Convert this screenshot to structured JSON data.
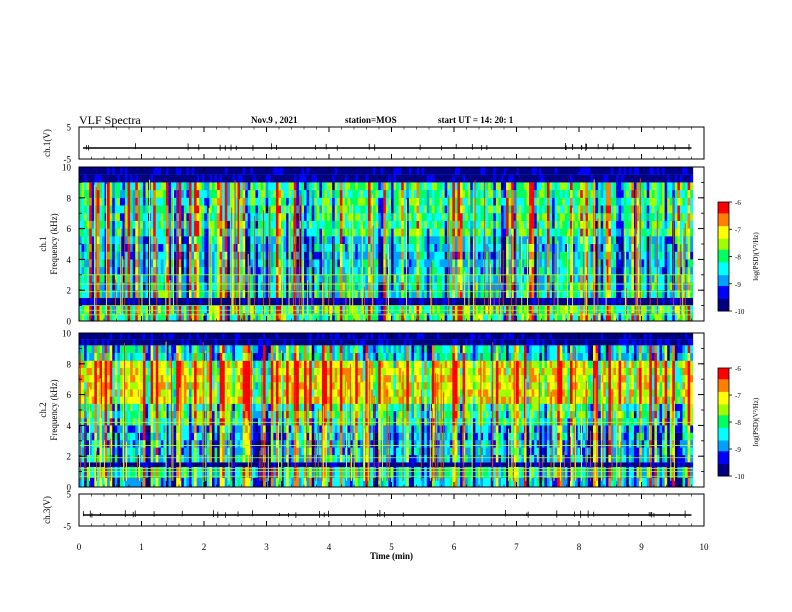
{
  "header": {
    "title": "VLF Spectra",
    "date": "Nov.9  , 2021",
    "station": "station=MOS",
    "start_ut": "start  UT =   14: 20: 1"
  },
  "chart_data": [
    {
      "type": "line",
      "name": "ch1-waveform",
      "ylabel": "ch.1(V)",
      "ylim": [
        -5,
        5
      ],
      "y_ticks": [
        "5",
        "-5"
      ],
      "x_range_min": [
        0,
        9.8
      ]
    },
    {
      "type": "heatmap",
      "name": "ch1-spectrogram",
      "ylabel": "ch.1\nFrequency (kHz)",
      "ylim": [
        0,
        10
      ],
      "y_ticks": [
        "0",
        "2",
        "4",
        "6",
        "8",
        "10"
      ],
      "xlim_min": [
        0,
        10
      ],
      "z_label": "log(PSD)(V²/Hz)",
      "z_range": [
        -10,
        -6
      ],
      "z_ticks": [
        "-6",
        "-7",
        "-8",
        "-9",
        "-10"
      ],
      "colormap": [
        "#000080",
        "#0000ff",
        "#00a0ff",
        "#00ffff",
        "#00ff60",
        "#a0ff00",
        "#ffff00",
        "#ff8000",
        "#ff0000",
        "#ffffff"
      ]
    },
    {
      "type": "heatmap",
      "name": "ch2-spectrogram",
      "ylabel": "ch.2\nFrequency (kHz)",
      "ylim": [
        0,
        10
      ],
      "y_ticks": [
        "0",
        "2",
        "4",
        "6",
        "8",
        "10"
      ],
      "xlim_min": [
        0,
        10
      ],
      "z_label": "log(PSD)(V²/Hz)",
      "z_range": [
        -10,
        -6
      ],
      "z_ticks": [
        "-6",
        "-7",
        "-8",
        "-9",
        "-10"
      ]
    },
    {
      "type": "line",
      "name": "ch3-waveform",
      "ylabel": "ch.3(V)",
      "ylim": [
        -5,
        5
      ],
      "y_ticks": [
        "5",
        "-5"
      ]
    }
  ],
  "x_axis": {
    "label": "Time  (min)",
    "ticks": [
      "0",
      "1",
      "2",
      "3",
      "4",
      "5",
      "6",
      "7",
      "8",
      "9",
      "10"
    ]
  }
}
